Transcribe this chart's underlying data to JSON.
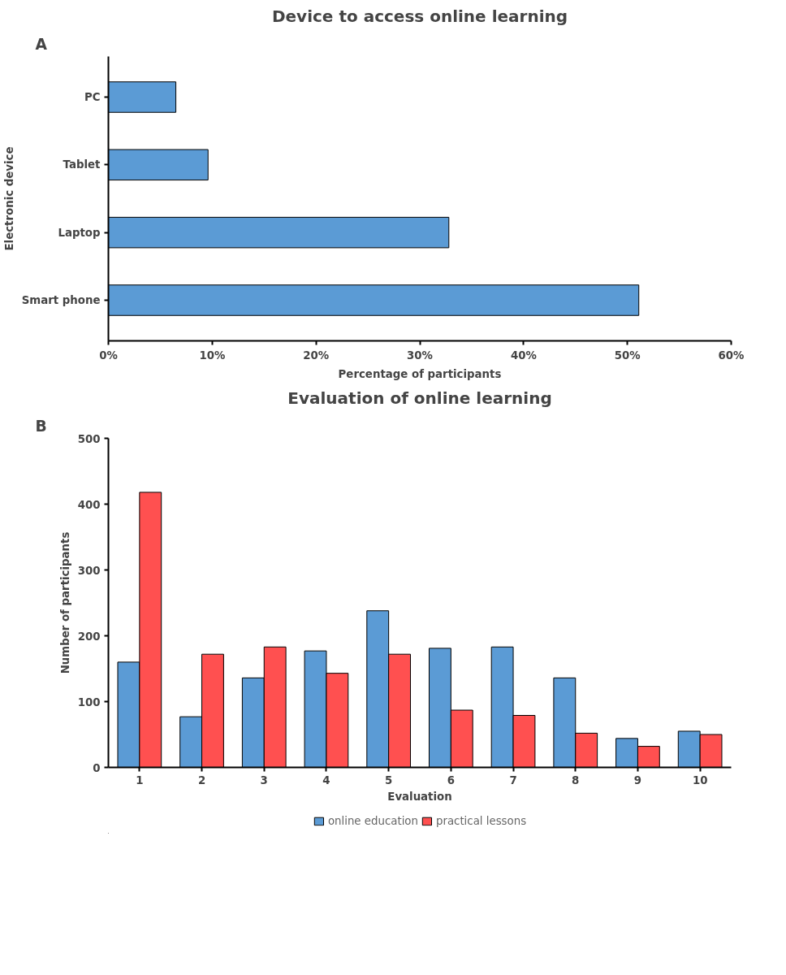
{
  "chart_data": [
    {
      "type": "bar",
      "orientation": "horizontal",
      "title": "Device to access online learning",
      "xlabel": "Percentage of participants",
      "ylabel": "Electronic device",
      "annotations": [
        "A"
      ],
      "categories": [
        "PC",
        "Tablet",
        "Laptop",
        "Smart phone"
      ],
      "values": [
        6.5,
        9.6,
        32.8,
        51.1
      ],
      "color": "#5b9bd5",
      "xlim": [
        0,
        60
      ],
      "xticks": [
        {
          "value": 0,
          "label": "0%"
        },
        {
          "value": 10,
          "label": "10%"
        },
        {
          "value": 20,
          "label": "20%"
        },
        {
          "value": 30,
          "label": "30%"
        },
        {
          "value": 40,
          "label": "40%"
        },
        {
          "value": 50,
          "label": "50%"
        },
        {
          "value": 60,
          "label": "60%"
        }
      ],
      "grid": false
    },
    {
      "type": "bar",
      "title": "Evaluation of online learning",
      "xlabel": "Evaluation",
      "ylabel": "Number of participants",
      "annotations": [
        "B"
      ],
      "categories": [
        "1",
        "2",
        "3",
        "4",
        "5",
        "6",
        "7",
        "8",
        "9",
        "10"
      ],
      "series": [
        {
          "name": "online education",
          "color": "#5b9bd5",
          "values": [
            160,
            77,
            136,
            177,
            238,
            181,
            183,
            136,
            44,
            55
          ]
        },
        {
          "name": "practical lessons",
          "color": "#ff5050",
          "values": [
            418,
            172,
            183,
            143,
            172,
            87,
            79,
            52,
            32,
            50
          ]
        }
      ],
      "ylim": [
        0,
        500
      ],
      "yticks": [
        0,
        100,
        200,
        300,
        400,
        500
      ],
      "grid": false,
      "legend": "bottom"
    }
  ]
}
